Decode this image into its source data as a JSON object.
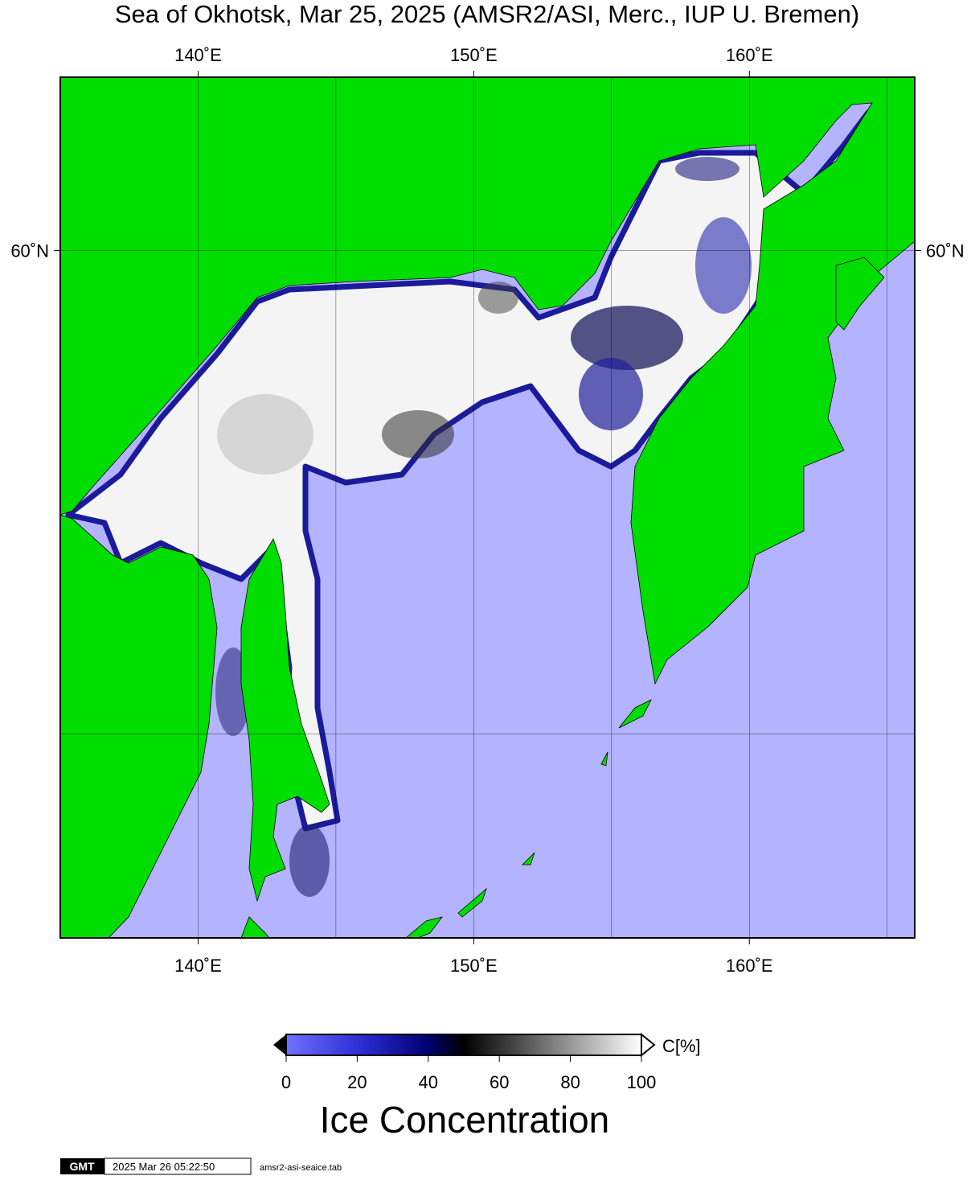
{
  "map": {
    "title": "Sea of Okhotsk, Mar 25, 2025 (AMSR2/ASI, Merc., IUP U. Bremen)",
    "lon_range": [
      135,
      166
    ],
    "lat_range": [
      45,
      63
    ],
    "lon_ticks": [
      {
        "value": 140,
        "label": "140˚E"
      },
      {
        "value": 150,
        "label": "150˚E"
      },
      {
        "value": 160,
        "label": "160˚E"
      }
    ],
    "lat_ticks": [
      {
        "value": 60,
        "label": "60˚N"
      }
    ],
    "lon_grid": [
      140,
      145,
      150,
      155,
      160,
      165
    ],
    "lat_grid": [
      50,
      60
    ]
  },
  "colorbar": {
    "range": [
      0,
      100
    ],
    "ticks": [
      0,
      20,
      40,
      60,
      80,
      100
    ],
    "unit": "C[%]",
    "title": "Ice Concentration"
  },
  "footer": {
    "logo": "GMT",
    "timestamp": "2025 Mar 26 05:22:50",
    "file": "amsr2-asi-seaice.tab"
  }
}
